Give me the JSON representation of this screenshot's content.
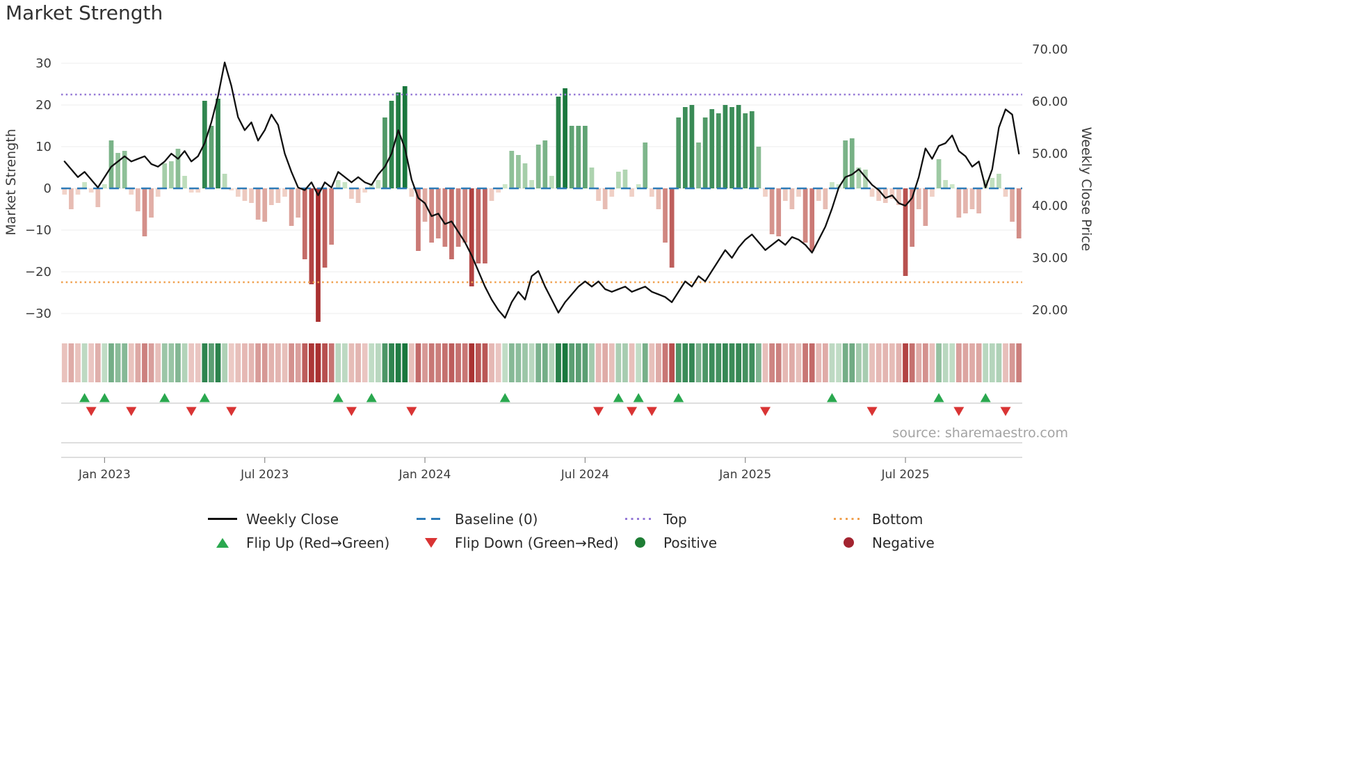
{
  "title": "Market Strength",
  "source_text": "source: sharemaestro.com",
  "colors": {
    "line": "#111111",
    "baseline": "#2d7bb8",
    "top": "#9579d6",
    "bottom": "#f0a14f",
    "pos_light": "#d4ebcd",
    "pos_dark": "#19773d",
    "neg_light": "#f6ddd2",
    "neg_dark": "#a93030",
    "flip_up": "#2aa84f",
    "flip_down": "#d93434",
    "positive_dot": "#1e7d34",
    "negative_dot": "#a32430",
    "axis_text": "#3c3c3c",
    "grid": "#ededed",
    "strip_line": "#c9c9c9",
    "source": "#a3a3a3"
  },
  "axes": {
    "left": {
      "label": "Market Strength",
      "tick_values": [
        30,
        20,
        10,
        0,
        -10,
        -20,
        -30
      ],
      "tick_labels": [
        "30",
        "20",
        "10",
        "0",
        "−10",
        "−20",
        "−30"
      ]
    },
    "right": {
      "label": "Weekly Close Price",
      "tick_values": [
        70,
        60,
        50,
        40,
        30,
        20
      ],
      "tick_labels": [
        "70.00",
        "60.00",
        "50.00",
        "40.00",
        "30.00",
        "20.00"
      ]
    },
    "x": {
      "tick_labels": [
        "Jan 2023",
        "Jul 2023",
        "Jan 2024",
        "Jul 2024",
        "Jan 2025",
        "Jul 2025"
      ],
      "tick_indices": [
        6,
        30,
        54,
        78,
        102,
        126
      ]
    }
  },
  "legend": {
    "items": [
      {
        "label": "Weekly Close",
        "swatch": "line",
        "color": "#111111"
      },
      {
        "label": "Baseline (0)",
        "swatch": "dashed",
        "color": "#2d7bb8"
      },
      {
        "label": "Top",
        "swatch": "dotted",
        "color": "#9579d6"
      },
      {
        "label": "Bottom",
        "swatch": "dotted",
        "color": "#f0a14f"
      },
      {
        "label": "Flip Up (Red→Green)",
        "swatch": "triangle-up",
        "color": "#2aa84f"
      },
      {
        "label": "Flip Down (Green→Red)",
        "swatch": "triangle-down",
        "color": "#d93434"
      },
      {
        "label": "Positive",
        "swatch": "circle",
        "color": "#1e7d34"
      },
      {
        "label": "Negative",
        "swatch": "circle",
        "color": "#a32430"
      }
    ]
  },
  "chart_data": {
    "type": "combo: weekly strength bars (left axis) + weekly close line (right axis) + heatmap strip + flip markers",
    "x_unit": "weeks, approx Nov 2022 – Oct 2025",
    "n_points": 144,
    "left_axis_range": [
      -35,
      34.8
    ],
    "right_axis_range": [
      16.8,
      71.2
    ],
    "reference_lines": [
      {
        "name": "Baseline (0)",
        "axis": "left",
        "value": 0,
        "style": "dashed"
      },
      {
        "name": "Top",
        "axis": "left",
        "value": 22.5,
        "style": "dotted"
      },
      {
        "name": "Bottom",
        "axis": "left",
        "value": -22.5,
        "style": "dotted"
      }
    ],
    "bar_series": {
      "name": "Market Strength",
      "axis": "left",
      "values": [
        -1.5,
        -5,
        -1.5,
        1.5,
        -1,
        -4.5,
        1,
        11.5,
        8.5,
        9,
        -1.5,
        -5.5,
        -11.5,
        -7,
        -2,
        6,
        6.5,
        9.5,
        3,
        -1,
        -1,
        21,
        15,
        21.5,
        3.5,
        -0.5,
        -2,
        -3,
        -3.5,
        -7.5,
        -8,
        -4,
        -3.5,
        -2,
        -9,
        -7,
        -17,
        -23,
        -32,
        -19,
        -13.5,
        2,
        1.5,
        -2.5,
        -3.5,
        -1,
        1,
        2,
        17,
        21,
        23,
        24.5,
        -2,
        -15,
        -8,
        -13,
        -12,
        -14,
        -17,
        -14,
        -13,
        -23.5,
        -18,
        -18,
        -3,
        -1,
        1,
        9,
        8,
        6,
        2,
        10.5,
        11.5,
        3,
        22,
        24,
        15,
        15,
        15,
        5,
        -3,
        -5,
        -2,
        4,
        4.5,
        -2,
        1,
        11,
        -2,
        -5,
        -13,
        -19,
        17,
        19.5,
        20,
        11,
        17,
        19,
        18,
        20,
        19.5,
        20,
        18,
        18.5,
        10,
        -2,
        -11,
        -11.5,
        -3,
        -5,
        -2,
        -13,
        -15,
        -3,
        -5,
        1.5,
        1,
        11.5,
        12,
        5,
        4.5,
        -2,
        -3,
        -3.5,
        -2.5,
        -4,
        -21,
        -14,
        -5,
        -9,
        -2,
        7,
        2,
        1,
        -7,
        -6,
        -5,
        -6,
        2,
        2.5,
        3.5,
        -2,
        -8,
        -12
      ]
    },
    "line_series": {
      "name": "Weekly Close",
      "axis": "right",
      "values": [
        48.5,
        47,
        45.5,
        46.5,
        45,
        43.5,
        45.5,
        47.5,
        48.5,
        49.5,
        48.5,
        49,
        49.5,
        48,
        47.5,
        48.5,
        50,
        49,
        50.5,
        48.5,
        49.5,
        52,
        56,
        61,
        67.5,
        63,
        57,
        54.5,
        56,
        52.5,
        54.5,
        57.5,
        55.5,
        50,
        46.5,
        43.5,
        43,
        44.5,
        42,
        44.5,
        43.5,
        46.5,
        45.5,
        44.5,
        45.5,
        44.5,
        44,
        46,
        47.5,
        50,
        54.5,
        51,
        45,
        41.5,
        40.5,
        38,
        38.5,
        36.5,
        37,
        35,
        33,
        30.5,
        27.5,
        24.5,
        22,
        20,
        18.5,
        21.5,
        23.5,
        22,
        26.5,
        27.5,
        24.5,
        22,
        19.5,
        21.5,
        23,
        24.5,
        25.5,
        24.5,
        25.5,
        24,
        23.5,
        24,
        24.5,
        23.5,
        24,
        24.5,
        23.5,
        23,
        22.5,
        21.5,
        23.5,
        25.5,
        24.5,
        26.5,
        25.5,
        27.5,
        29.5,
        31.5,
        30,
        32,
        33.5,
        34.5,
        33,
        31.5,
        32.5,
        33.5,
        32.5,
        34,
        33.5,
        32.5,
        31,
        33.5,
        36,
        39.5,
        43.5,
        45.5,
        46,
        47,
        45.5,
        44,
        43,
        41.5,
        42,
        40.5,
        40,
        41.5,
        45.5,
        51,
        49,
        51.5,
        52,
        53.5,
        50.5,
        49.5,
        47.5,
        48.5,
        43.5,
        47,
        55,
        58.5,
        57.5,
        50
      ]
    },
    "heatmap_strip": "weekly strength values rendered as red/green intensity cells (same values as bar_series.values)",
    "flip_markers": "derived from sign changes of bar_series.values: up triangle = red→green flip, down triangle = green→red flip"
  }
}
